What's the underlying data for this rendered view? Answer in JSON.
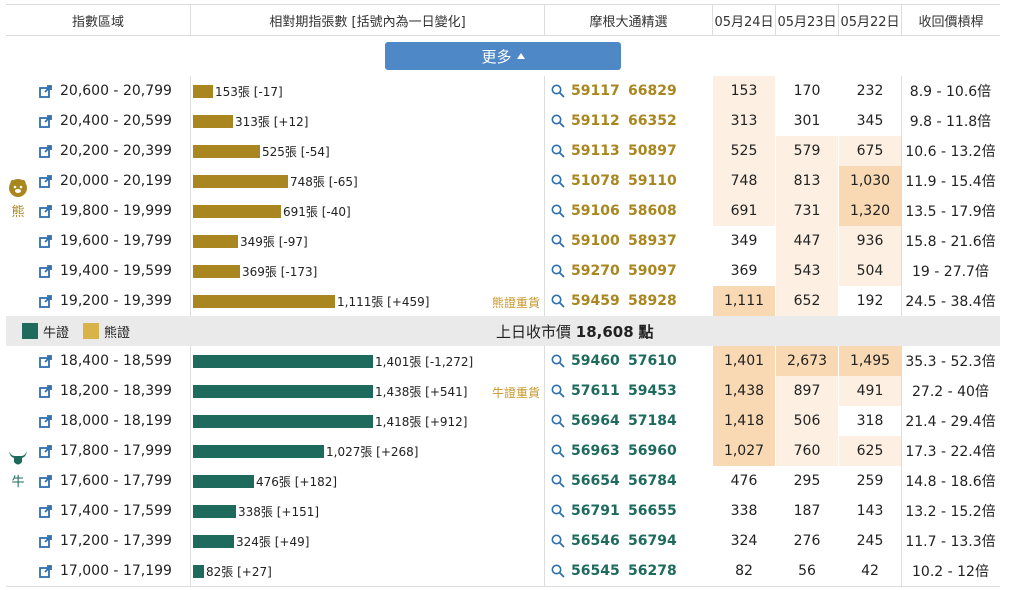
{
  "header": {
    "col_region": "指數區域",
    "col_relative": "相對期指張數 [括號內為一日變化]",
    "col_morgan": "摩根大通精選",
    "col_d1": "05月24日",
    "col_d2": "05月23日",
    "col_d3": "05月22日",
    "col_leverage": "收回價槓桿"
  },
  "more_button": "更多",
  "bear_label": "熊",
  "bull_label": "牛",
  "legend": {
    "bull": "牛證",
    "bear": "熊證"
  },
  "prev_close": {
    "prefix": "上日收市價",
    "value": "18,608",
    "suffix": "點"
  },
  "colors": {
    "bear": "#a9861f",
    "bull": "#1e6b5e",
    "heat_dark": "#f8d9b4",
    "heat_light": "#fdf0e2"
  },
  "bear_rows": [
    {
      "range": "20,600 - 20,799",
      "bar_label": "153張 [-17]",
      "bar_pct": 0.11,
      "tag": "",
      "c1": "59117",
      "c2": "66829",
      "d1": "153",
      "d2": "170",
      "d3": "232",
      "lev": "8.9 - 10.6倍",
      "heat": [
        1,
        0,
        0
      ]
    },
    {
      "range": "20,400 - 20,599",
      "bar_label": "313張 [+12]",
      "bar_pct": 0.22,
      "tag": "",
      "c1": "59112",
      "c2": "66352",
      "d1": "313",
      "d2": "301",
      "d3": "345",
      "lev": "9.8 - 11.8倍",
      "heat": [
        1,
        0,
        0
      ]
    },
    {
      "range": "20,200 - 20,399",
      "bar_label": "525張 [-54]",
      "bar_pct": 0.37,
      "tag": "",
      "c1": "59113",
      "c2": "50897",
      "d1": "525",
      "d2": "579",
      "d3": "675",
      "lev": "10.6 - 13.2倍",
      "heat": [
        1,
        1,
        1
      ]
    },
    {
      "range": "20,000 - 20,199",
      "bar_label": "748張 [-65]",
      "bar_pct": 0.53,
      "tag": "",
      "c1": "51078",
      "c2": "59110",
      "d1": "748",
      "d2": "813",
      "d3": "1,030",
      "lev": "11.9 - 15.4倍",
      "heat": [
        1,
        1,
        2
      ]
    },
    {
      "range": "19,800 - 19,999",
      "bar_label": "691張 [-40]",
      "bar_pct": 0.49,
      "tag": "",
      "c1": "59106",
      "c2": "58608",
      "d1": "691",
      "d2": "731",
      "d3": "1,320",
      "lev": "13.5 - 17.9倍",
      "heat": [
        1,
        1,
        2
      ]
    },
    {
      "range": "19,600 - 19,799",
      "bar_label": "349張 [-97]",
      "bar_pct": 0.25,
      "tag": "",
      "c1": "59100",
      "c2": "58937",
      "d1": "349",
      "d2": "447",
      "d3": "936",
      "lev": "15.8 - 21.6倍",
      "heat": [
        0,
        1,
        1
      ]
    },
    {
      "range": "19,400 - 19,599",
      "bar_label": "369張 [-173]",
      "bar_pct": 0.26,
      "tag": "",
      "c1": "59270",
      "c2": "59097",
      "d1": "369",
      "d2": "543",
      "d3": "504",
      "lev": "19 - 27.7倍",
      "heat": [
        0,
        1,
        1
      ]
    },
    {
      "range": "19,200 - 19,399",
      "bar_label": "1,111張 [+459]",
      "bar_pct": 0.79,
      "tag": "熊證重貨",
      "c1": "59459",
      "c2": "58928",
      "d1": "1,111",
      "d2": "652",
      "d3": "192",
      "lev": "24.5 - 38.4倍",
      "heat": [
        2,
        1,
        0
      ]
    }
  ],
  "bull_rows": [
    {
      "range": "18,400 - 18,599",
      "bar_label": "1,401張 [-1,272]",
      "bar_pct": 1.0,
      "tag": "",
      "c1": "59460",
      "c2": "57610",
      "d1": "1,401",
      "d2": "2,673",
      "d3": "1,495",
      "lev": "35.3 - 52.3倍",
      "heat": [
        2,
        2,
        2
      ]
    },
    {
      "range": "18,200 - 18,399",
      "bar_label": "1,438張 [+541]",
      "bar_pct": 1.0,
      "tag": "牛證重貨",
      "c1": "57611",
      "c2": "59453",
      "d1": "1,438",
      "d2": "897",
      "d3": "491",
      "lev": "27.2 - 40倍",
      "heat": [
        2,
        1,
        1
      ]
    },
    {
      "range": "18,000 - 18,199",
      "bar_label": "1,418張 [+912]",
      "bar_pct": 1.0,
      "tag": "",
      "c1": "56964",
      "c2": "57184",
      "d1": "1,418",
      "d2": "506",
      "d3": "318",
      "lev": "21.4 - 29.4倍",
      "heat": [
        2,
        1,
        0
      ]
    },
    {
      "range": "17,800 - 17,999",
      "bar_label": "1,027張 [+268]",
      "bar_pct": 0.73,
      "tag": "",
      "c1": "56963",
      "c2": "56960",
      "d1": "1,027",
      "d2": "760",
      "d3": "625",
      "lev": "17.3 - 22.4倍",
      "heat": [
        2,
        1,
        1
      ]
    },
    {
      "range": "17,600 - 17,799",
      "bar_label": "476張 [+182]",
      "bar_pct": 0.34,
      "tag": "",
      "c1": "56654",
      "c2": "56784",
      "d1": "476",
      "d2": "295",
      "d3": "259",
      "lev": "14.8 - 18.6倍",
      "heat": [
        0,
        0,
        0
      ]
    },
    {
      "range": "17,400 - 17,599",
      "bar_label": "338張 [+151]",
      "bar_pct": 0.24,
      "tag": "",
      "c1": "56791",
      "c2": "56655",
      "d1": "338",
      "d2": "187",
      "d3": "143",
      "lev": "13.2 - 15.2倍",
      "heat": [
        0,
        0,
        0
      ]
    },
    {
      "range": "17,200 - 17,399",
      "bar_label": "324張 [+49]",
      "bar_pct": 0.23,
      "tag": "",
      "c1": "56546",
      "c2": "56794",
      "d1": "324",
      "d2": "276",
      "d3": "245",
      "lev": "11.7 - 13.3倍",
      "heat": [
        0,
        0,
        0
      ]
    },
    {
      "range": "17,000 - 17,199",
      "bar_label": "82張 [+27]",
      "bar_pct": 0.06,
      "tag": "",
      "c1": "56545",
      "c2": "56278",
      "d1": "82",
      "d2": "56",
      "d3": "42",
      "lev": "10.2 - 12倍",
      "heat": [
        0,
        0,
        0
      ]
    }
  ]
}
